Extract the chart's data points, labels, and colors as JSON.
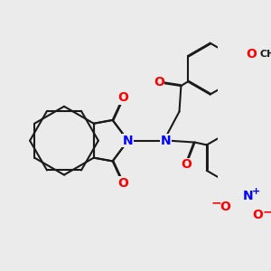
{
  "background_color": "#ebebeb",
  "atom_colors": {
    "N": "#0000ff",
    "O": "#ff0000",
    "C": "#000000"
  },
  "bond_color": "#1a1a1a",
  "bond_width": 1.5,
  "dbo": 0.012,
  "figsize": [
    3.0,
    3.0
  ],
  "dpi": 100,
  "font_size_atoms": 10,
  "font_size_methyl": 8,
  "font_size_charge": 8
}
